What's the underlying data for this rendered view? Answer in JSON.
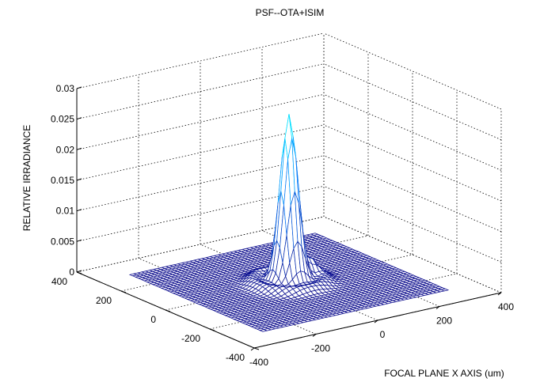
{
  "chart_data": {
    "type": "surface",
    "title": "PSF--OTA+ISIM",
    "xlabel": "FOCAL PLANE X AXIS (um)",
    "ylabel": "",
    "zlabel": "RELATIVE IRRADIANCE",
    "xlim": [
      -400,
      400
    ],
    "ylim": [
      -400,
      400
    ],
    "zlim": [
      0,
      0.03
    ],
    "x_ticks": [
      "-400",
      "-200",
      "0",
      "200",
      "400"
    ],
    "y_ticks": [
      "-400",
      "-200",
      "0",
      "200",
      "400"
    ],
    "z_ticks": [
      "0",
      "0.005",
      "0.01",
      "0.015",
      "0.02",
      "0.025",
      "0.03"
    ],
    "grid": true,
    "surface": {
      "x_range": [
        -300,
        300
      ],
      "y_range": [
        -300,
        300
      ],
      "peak": 0.0275,
      "peak_x": 0,
      "peak_y": 0,
      "secondary_peak": 0.0025,
      "secondary_peak_x": 70,
      "secondary_peak_y": 0
    },
    "colors": {
      "mesh_low": "#0a0a8c",
      "mesh_high": "#00e8ff",
      "peak_tip": "#ffee00"
    }
  }
}
